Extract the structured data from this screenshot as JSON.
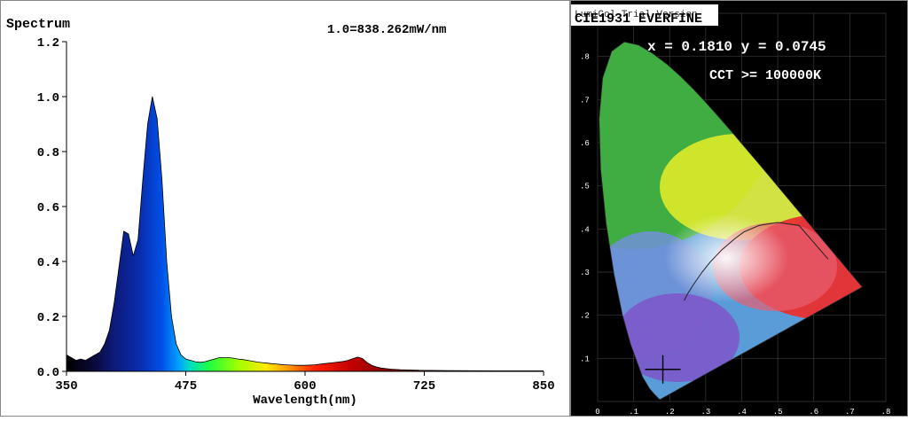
{
  "chart_data": [
    {
      "type": "area",
      "title": "Spectrum",
      "annotation": "1.0=838.262mW/nm",
      "xlabel": "Wavelength(nm)",
      "ylabel": "",
      "xlim": [
        350,
        850
      ],
      "ylim": [
        0,
        1.2
      ],
      "x_ticks": [
        350,
        475,
        600,
        725,
        850
      ],
      "y_ticks": [
        "0.0",
        "0.2",
        "0.4",
        "0.6",
        "0.8",
        "1.0",
        "1.2"
      ],
      "x": [
        350,
        355,
        360,
        365,
        370,
        375,
        380,
        385,
        390,
        395,
        400,
        405,
        410,
        415,
        420,
        425,
        430,
        435,
        440,
        445,
        450,
        455,
        460,
        465,
        470,
        475,
        480,
        485,
        490,
        495,
        500,
        505,
        510,
        515,
        520,
        525,
        530,
        535,
        540,
        545,
        550,
        555,
        560,
        565,
        570,
        575,
        580,
        585,
        590,
        595,
        600,
        610,
        620,
        630,
        640,
        645,
        650,
        655,
        660,
        665,
        670,
        675,
        680,
        690,
        700,
        720,
        750,
        800,
        850
      ],
      "values": [
        0.06,
        0.05,
        0.04,
        0.045,
        0.04,
        0.05,
        0.06,
        0.07,
        0.1,
        0.15,
        0.25,
        0.38,
        0.51,
        0.5,
        0.42,
        0.48,
        0.7,
        0.9,
        1.0,
        0.92,
        0.7,
        0.4,
        0.2,
        0.1,
        0.06,
        0.045,
        0.04,
        0.035,
        0.033,
        0.035,
        0.04,
        0.045,
        0.05,
        0.05,
        0.05,
        0.048,
        0.045,
        0.043,
        0.04,
        0.037,
        0.034,
        0.032,
        0.03,
        0.028,
        0.027,
        0.025,
        0.024,
        0.023,
        0.022,
        0.022,
        0.022,
        0.024,
        0.028,
        0.032,
        0.036,
        0.04,
        0.046,
        0.052,
        0.047,
        0.032,
        0.022,
        0.016,
        0.012,
        0.008,
        0.006,
        0.004,
        0.003,
        0.002,
        0.002
      ]
    },
    {
      "type": "scatter",
      "title": "CIE1931 EVERFINE",
      "watermark": "LumiCol Trial Version",
      "x_label_text": "x = 0.1810 y = 0.0745",
      "cct_text": "CCT >= 100000K",
      "point": {
        "x": 0.181,
        "y": 0.0745
      },
      "xlim": [
        0,
        0.8
      ],
      "ylim": [
        0,
        0.9
      ],
      "x_ticks": [
        "0",
        ".1",
        ".2",
        ".3",
        ".4",
        ".5",
        ".6",
        ".7",
        ".8"
      ],
      "y_ticks": [
        ".1",
        ".2",
        ".3",
        ".4",
        ".5",
        ".6",
        ".7",
        ".8",
        ".9"
      ]
    }
  ]
}
